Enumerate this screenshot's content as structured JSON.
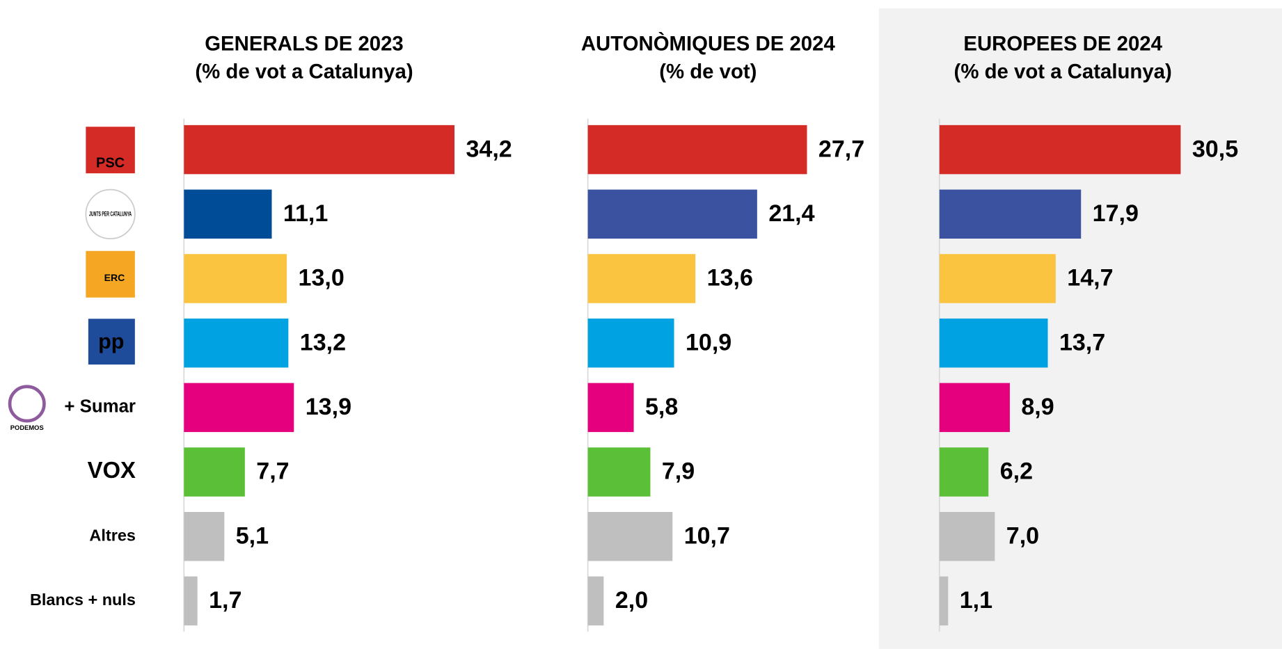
{
  "chart_data": [
    {
      "type": "bar",
      "orientation": "horizontal",
      "title": "GENERALS DE 2023",
      "subtitle": "(% de vot a Catalunya)",
      "categories": [
        "PSC",
        "JUNTS PER CATALUNYA",
        "ERC",
        "pp",
        "+ Sumar",
        "VOX",
        "Altres",
        "Blancs + nuls"
      ],
      "podemos_logo": "PODEMOS",
      "values": [
        34.2,
        11.1,
        13.0,
        13.2,
        13.9,
        7.7,
        5.1,
        1.7
      ],
      "value_labels": [
        "34,2",
        "11,1",
        "13,0",
        "13,2",
        "13,9",
        "7,7",
        "5,1",
        "1,7"
      ],
      "colors": [
        "#d52b27",
        "#004c97",
        "#fbc440",
        "#00a2e1",
        "#e5007d",
        "#5bbf38",
        "#bfbfbf",
        "#bfbfbf"
      ],
      "xlim": [
        0,
        40
      ]
    },
    {
      "type": "bar",
      "orientation": "horizontal",
      "title": "AUTONÒMIQUES DE 2024",
      "subtitle": "(% de vot)",
      "values": [
        27.7,
        21.4,
        13.6,
        10.9,
        5.8,
        7.9,
        10.7,
        2.0
      ],
      "value_labels": [
        "27,7",
        "21,4",
        "13,6",
        "10,9",
        "5,8",
        "7,9",
        "10,7",
        "2,0"
      ],
      "colors": [
        "#d52b27",
        "#3a52a0",
        "#fbc440",
        "#00a2e1",
        "#e5007d",
        "#5bbf38",
        "#bfbfbf",
        "#bfbfbf"
      ],
      "xlim": [
        0,
        40
      ]
    },
    {
      "type": "bar",
      "orientation": "horizontal",
      "title": "EUROPEES DE 2024",
      "subtitle": "(% de vot a Catalunya)",
      "values": [
        30.5,
        17.9,
        14.7,
        13.7,
        8.9,
        6.2,
        7.0,
        1.1
      ],
      "value_labels": [
        "30,5",
        "17,9",
        "14,7",
        "13,7",
        "8,9",
        "6,2",
        "7,0",
        "1,1"
      ],
      "colors": [
        "#d52b27",
        "#3a52a0",
        "#fbc440",
        "#00a2e1",
        "#e5007d",
        "#5bbf38",
        "#bfbfbf",
        "#bfbfbf"
      ],
      "xlim": [
        0,
        40
      ]
    }
  ]
}
